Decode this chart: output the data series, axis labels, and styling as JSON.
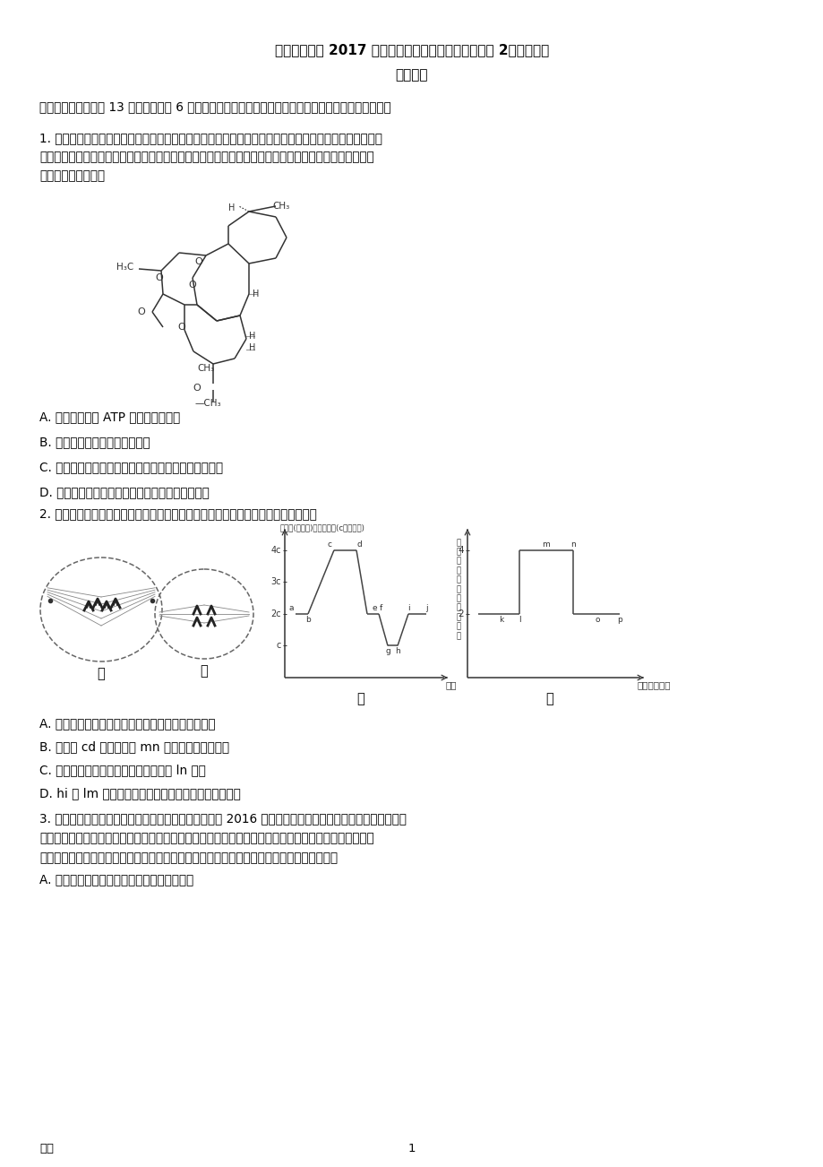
{
  "title1": "普通高等学校 2017 年招生全国统一考试（终极押题卷 2）理科综合",
  "title2": "生物试题",
  "section1": "一、选择题：本题共 13 小题，每小题 6 分。在每小题给出的四个选项中，只有一项是符合题目要求的。",
  "q1_text1": "1. 青蒿素是一种抗疟疾的特效药，其作用机理主要是破坏疟原虫的膜性结构，使其泡膜、质膜和核膜均遭",
  "q1_text2": "破坏，屠呦呦及其团队在对此作进一步的研究中发现了一种药效更高的衍生物蒿甲醚，其结构式如下。下",
  "q1_text3": "列相关叙述正确的是",
  "q1_A": "A. 蒿甲醚具有与 ATP 相同的元素组成",
  "q1_B": "B. 蒿甲醚的作用机理类似于抗体",
  "q1_C": "C. 在蒿甲醚的作用下，疟原虫的物质转运效率明显降低",
  "q1_D": "D. 若长期使用蒿甲醚会诱导疟原虫出现抗药性变异",
  "q2_text": "2. 下图表示某一高等动物体内细胞分裂的分裂图和坐标图。则下列有关叙述错误的是",
  "q2_A": "A. 甲、乙两图可以来自于该生物同一部位的同一细胞",
  "q2_B": "B. 丙图中 cd 段和丁图中 mn 段可以表示同一时期",
  "q2_C": "C. 甲图中的下一个时期可对应于丁图的 ln 时期",
  "q2_D": "D. hi 和 lm 的染色体组数均存在加倍现象，但原理不同",
  "q3_text1": "3. 日本学者大隅良典因阐明细胞自体吞噬的机制而荣获 2016 年度诺贝尔生理学或医学奖，该机制旨在揭示",
  "q3_text2": "发生在细胞中的一种降解和再生细胞组分的基本过程。细胞自身能将其内部的受损、变性、衰老的蛋白质",
  "q3_text3": "或细胞器运输至溶酶体并降解，同时降解产物还可再次参与细胞组分的构建。下列相关说法是",
  "q3_A": "A. 细胞自噬和细胞凋亡对于细胞具有相同意义",
  "footer_left": "第页",
  "footer_num": "1"
}
